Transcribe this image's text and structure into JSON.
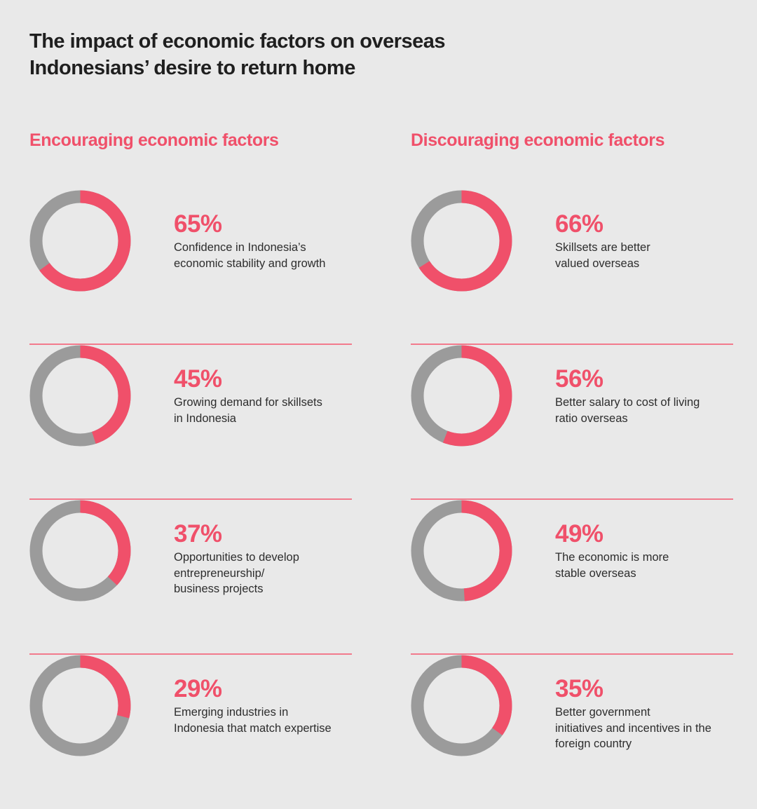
{
  "title_lines": [
    "The impact of economic factors on overseas",
    "Indonesians’ desire to return home"
  ],
  "colors": {
    "accent": "#f0506a",
    "track": "#9b9b9b",
    "background": "#e9e9e9",
    "divider": "#f27a8c"
  },
  "chart_data": [
    {
      "type": "pie",
      "title": "Encouraging economic factors",
      "categories": [
        "Confidence in Indonesia’s\neconomic stability and growth",
        "Growing demand for skillsets\nin Indonesia",
        "Opportunities to develop\nentrepreneurship/\nbusiness projects",
        "Emerging industries in\nIndonesia that match expertise"
      ],
      "values": [
        65,
        45,
        37,
        29
      ],
      "labels": [
        "65%",
        "45%",
        "37%",
        "29%"
      ]
    },
    {
      "type": "pie",
      "title": "Discouraging economic factors",
      "categories": [
        "Skillsets are better\nvalued overseas",
        "Better salary to cost of living\nratio overseas",
        "The economic is more\nstable overseas",
        "Better government\ninitiatives and incentives in the\nforeign country"
      ],
      "values": [
        66,
        56,
        49,
        35
      ],
      "labels": [
        "66%",
        "56%",
        "49%",
        "35%"
      ]
    }
  ]
}
